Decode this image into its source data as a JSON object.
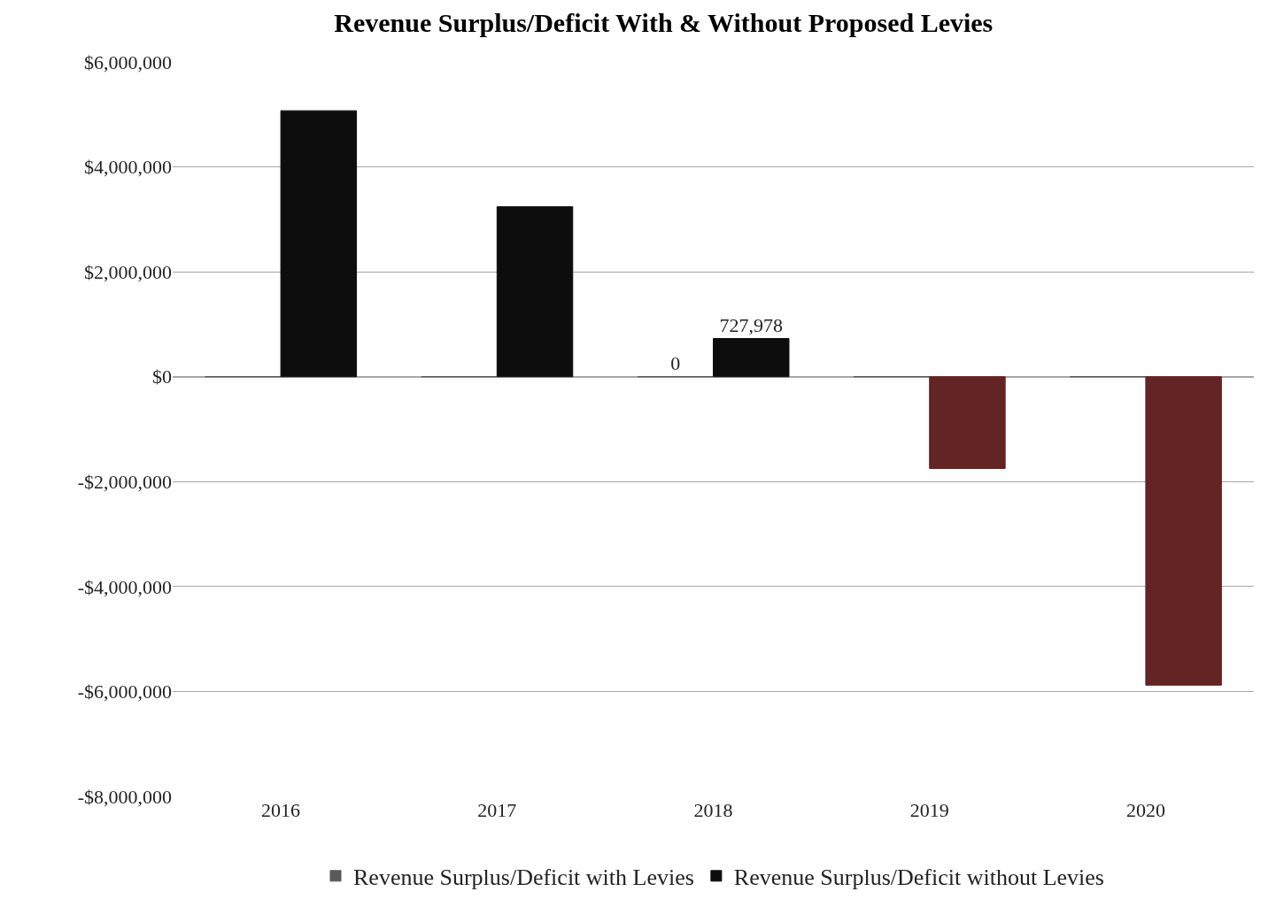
{
  "chart_data": {
    "type": "bar",
    "title": "Revenue Surplus/Deficit With & Without Proposed Levies",
    "categories": [
      "2016",
      "2017",
      "2018",
      "2019",
      "2020"
    ],
    "series": [
      {
        "name": "Revenue Surplus/Deficit with Levies",
        "color": "#595959",
        "values": [
          0,
          0,
          0,
          0,
          0
        ],
        "value_labels": [
          null,
          null,
          "0",
          null,
          null
        ]
      },
      {
        "name": "Revenue Surplus/Deficit without Levies",
        "color": "#0d0d0d",
        "colors": [
          "#0d0d0d",
          "#0d0d0d",
          "#0d0d0d",
          "#632523",
          "#632523"
        ],
        "values": [
          5070000,
          3240000,
          727978,
          -1750000,
          -5880000
        ],
        "value_labels": [
          null,
          null,
          "727,978",
          null,
          null
        ]
      }
    ],
    "ylim": [
      -8000000,
      6000000
    ],
    "yticks": [
      {
        "value": -8000000,
        "label": "-$8,000,000"
      },
      {
        "value": -6000000,
        "label": "-$6,000,000"
      },
      {
        "value": -4000000,
        "label": "-$4,000,000"
      },
      {
        "value": -2000000,
        "label": "-$2,000,000"
      },
      {
        "value": 0,
        "label": "$0"
      },
      {
        "value": 2000000,
        "label": "$2,000,000"
      },
      {
        "value": 4000000,
        "label": "$4,000,000"
      },
      {
        "value": 6000000,
        "label": "$6,000,000"
      }
    ],
    "grid": "y",
    "legend": "bottom"
  }
}
